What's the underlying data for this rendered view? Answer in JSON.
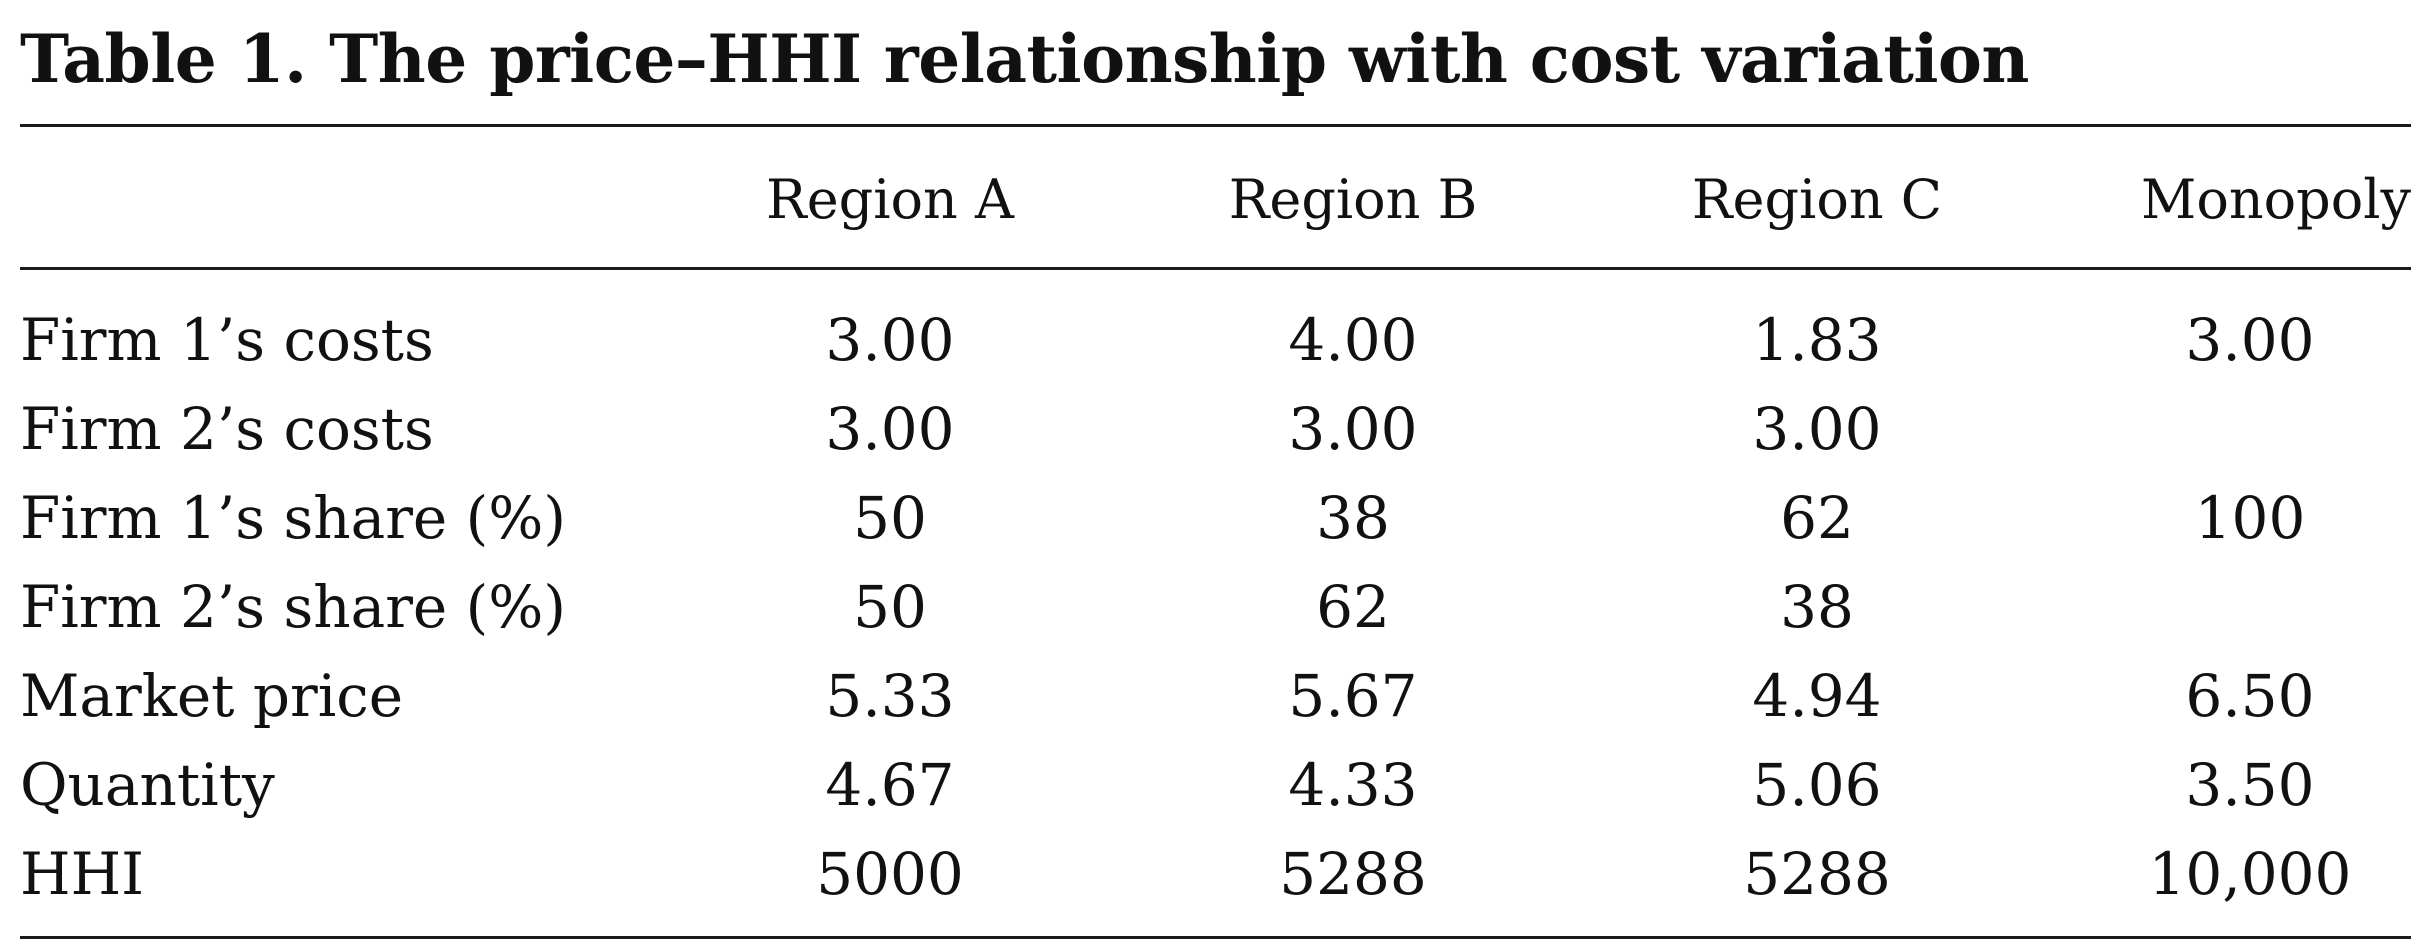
{
  "title": "Table 1. The price–HHI relationship with cost variation",
  "columns": [
    "Region A",
    "Region B",
    "Region C",
    "Monopoly"
  ],
  "rows": [
    {
      "label": "Firm 1’s costs",
      "a": "3.00",
      "b": "4.00",
      "c": "1.83",
      "m": "3.00"
    },
    {
      "label": "Firm 2’s costs",
      "a": "3.00",
      "b": "3.00",
      "c": "3.00",
      "m": ""
    },
    {
      "label": "Firm 1’s share (%)",
      "a": "50",
      "b": "38",
      "c": "62",
      "m": "100"
    },
    {
      "label": "Firm 2’s share (%)",
      "a": "50",
      "b": "62",
      "c": "38",
      "m": ""
    },
    {
      "label": "Market price",
      "a": "5.33",
      "b": "5.67",
      "c": "4.94",
      "m": "6.50"
    },
    {
      "label": "Quantity",
      "a": "4.67",
      "b": "4.33",
      "c": "5.06",
      "m": "3.50"
    },
    {
      "label": "HHI",
      "a": "5000",
      "b": "5288",
      "c": "5288",
      "m": "10,000"
    }
  ]
}
